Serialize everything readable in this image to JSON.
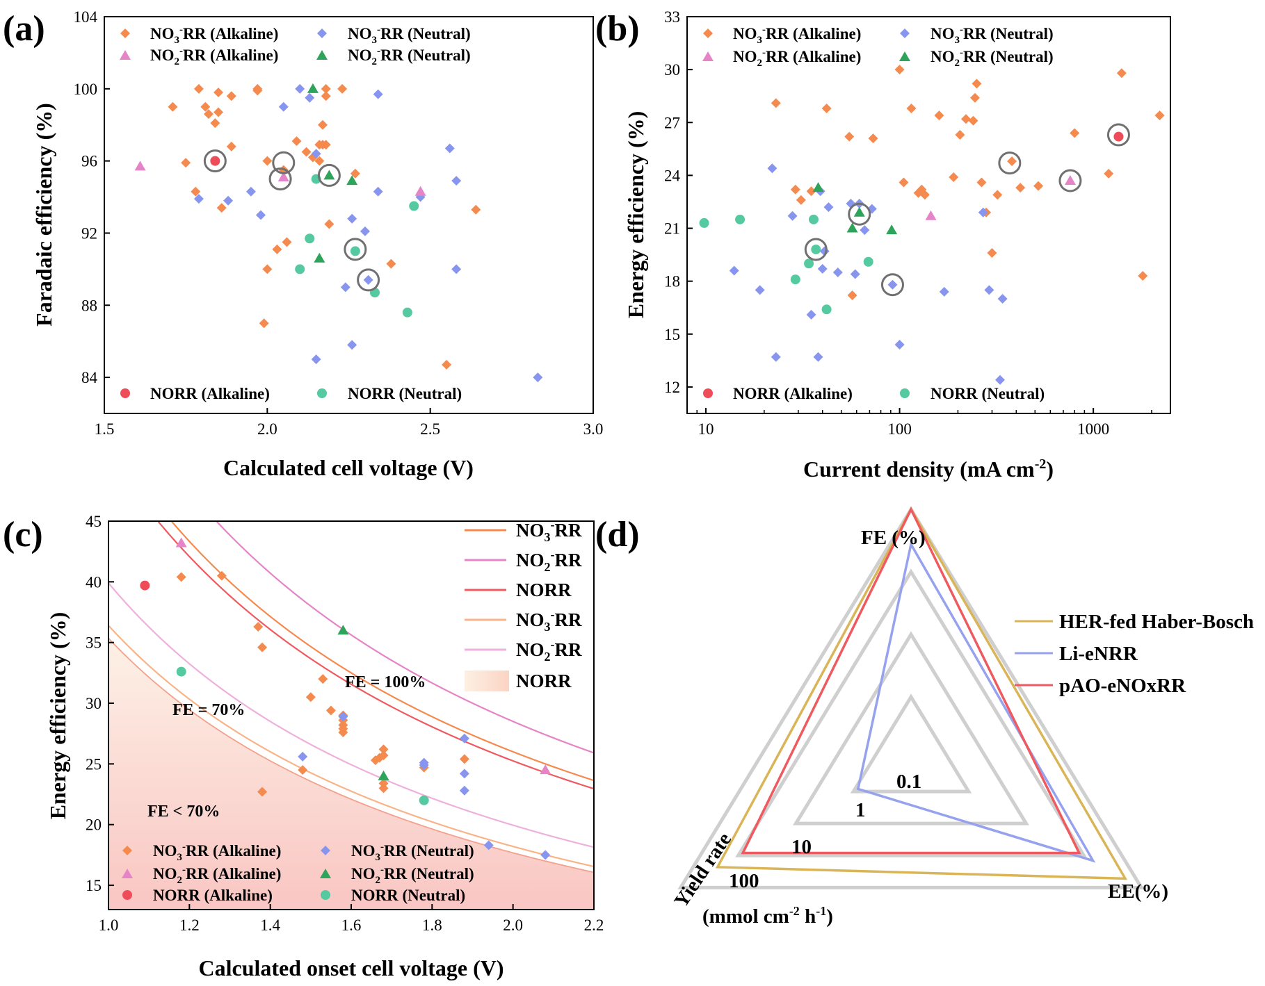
{
  "colors": {
    "no3_alk": "#f58a4e",
    "no3_neu": "#8795ee",
    "no2_alk": "#e684c8",
    "no2_neu": "#2ea35a",
    "norr_alk": "#ee4c58",
    "norr_neu": "#55c9a0",
    "her": "#d9b557",
    "li": "#97a2ee",
    "pao": "#ee5a5f",
    "grid_gray": "#cfcfcf",
    "circle_gray": "#707070"
  },
  "legend_labels": {
    "no3_alk": "NO3⁻RR (Alkaline)",
    "no3_neu": "NO3⁻RR (Neutral)",
    "no2_alk": "NO2⁻RR (Alkaline)",
    "no2_neu": "NO2⁻RR (Neutral)",
    "norr_alk": "NORR (Alkaline)",
    "norr_neu": "NORR (Neutral)"
  },
  "chart_data": [
    {
      "panel": "(a)",
      "type": "scatter",
      "xlabel": "Calculated cell voltage (V)",
      "ylabel": "Faradaic efficiency (%)",
      "xlim": [
        1.5,
        3.0
      ],
      "ylim": [
        82,
        104
      ],
      "xticks": [
        1.5,
        2.0,
        2.5,
        3.0
      ],
      "xtick_labels": [
        "1.5",
        "2.0",
        "2.5",
        "3.0"
      ],
      "yticks": [
        84,
        88,
        92,
        96,
        100,
        104
      ],
      "ytick_labels": [
        "84",
        "88",
        "92",
        "96",
        "100",
        "104"
      ],
      "series": [
        {
          "name": "NO3⁻RR (Alkaline)",
          "key": "no3_alk",
          "marker": "diamond",
          "x": [
            1.71,
            1.78,
            1.75,
            1.79,
            1.81,
            1.82,
            1.84,
            1.85,
            1.85,
            1.86,
            1.89,
            1.89,
            1.97,
            1.97,
            2.0,
            2.03,
            2.06,
            2.09,
            2.12,
            2.14,
            2.16,
            2.17,
            2.17,
            2.18,
            2.18,
            2.19,
            2.23,
            2.27,
            2.38,
            1.99,
            2.55,
            2.64,
            2.05,
            2.0,
            2.18,
            2.16
          ],
          "y": [
            99.0,
            94.3,
            95.9,
            100.0,
            99.0,
            98.6,
            98.1,
            99.8,
            98.7,
            93.4,
            99.6,
            96.8,
            99.9,
            100.0,
            90.0,
            91.1,
            91.5,
            97.1,
            96.5,
            96.2,
            96.9,
            98.0,
            96.9,
            99.6,
            100.0,
            92.5,
            100.0,
            95.3,
            90.3,
            87.0,
            84.7,
            93.3,
            95.5,
            96.0,
            96.9,
            96.0
          ]
        },
        {
          "name": "NO3⁻RR (Neutral)",
          "key": "no3_neu",
          "marker": "diamond",
          "x": [
            1.79,
            1.88,
            1.95,
            1.98,
            2.05,
            2.1,
            2.13,
            2.15,
            2.15,
            2.24,
            2.26,
            2.26,
            2.3,
            2.31,
            2.34,
            2.34,
            2.47,
            2.56,
            2.58,
            2.58,
            2.83
          ],
          "y": [
            93.9,
            93.8,
            94.3,
            93.0,
            99.0,
            100.0,
            99.5,
            96.4,
            85.0,
            89.0,
            92.8,
            85.8,
            92.1,
            89.4,
            99.7,
            94.3,
            94.0,
            96.7,
            94.9,
            90.0,
            84.0
          ]
        },
        {
          "name": "NO2⁻RR (Alkaline)",
          "key": "no2_alk",
          "marker": "triangle",
          "x": [
            1.61,
            2.05,
            2.47
          ],
          "y": [
            95.7,
            95.1,
            94.3
          ]
        },
        {
          "name": "NO2⁻RR (Neutral)",
          "key": "no2_neu",
          "marker": "triangle",
          "x": [
            2.14,
            2.16,
            2.19,
            2.26
          ],
          "y": [
            100.0,
            90.6,
            95.2,
            94.9
          ]
        },
        {
          "name": "NORR (Alkaline)",
          "key": "norr_alk",
          "marker": "circle",
          "x": [
            1.84
          ],
          "y": [
            96.0
          ]
        },
        {
          "name": "NORR (Neutral)",
          "key": "norr_neu",
          "marker": "circle",
          "x": [
            2.1,
            2.13,
            2.15,
            2.27,
            2.33,
            2.43,
            2.45
          ],
          "y": [
            90.0,
            91.7,
            95.0,
            91.0,
            88.7,
            87.6,
            93.5
          ]
        }
      ],
      "highlight_circles": {
        "x": [
          1.84,
          2.05,
          2.04,
          2.19,
          2.27,
          2.31
        ],
        "y": [
          96.0,
          95.9,
          95.0,
          95.2,
          91.1,
          89.4
        ]
      }
    },
    {
      "panel": "(b)",
      "type": "scatter",
      "xscale": "log",
      "xlabel": "Current density (mA cm⁻²)",
      "ylabel": "Energy efficiency (%)",
      "xlim": [
        8,
        2500
      ],
      "ylim": [
        10.5,
        33
      ],
      "xticks": [
        10,
        100,
        1000
      ],
      "xtick_labels": [
        "10",
        "100",
        "1000"
      ],
      "yticks": [
        12,
        15,
        18,
        21,
        24,
        27,
        30,
        33
      ],
      "ytick_labels": [
        "12",
        "15",
        "18",
        "21",
        "24",
        "27",
        "30",
        "33"
      ],
      "series": [
        {
          "name": "NO3⁻RR (Alkaline)",
          "key": "no3_alk",
          "marker": "diamond",
          "x": [
            23,
            29,
            31,
            35,
            42,
            55,
            57,
            73,
            100,
            105,
            115,
            125,
            130,
            135,
            160,
            190,
            205,
            220,
            240,
            245,
            250,
            265,
            280,
            300,
            320,
            380,
            420,
            520,
            800,
            1200,
            1400,
            1800,
            2200
          ],
          "y": [
            28.1,
            23.2,
            22.6,
            23.1,
            27.8,
            26.2,
            17.2,
            26.1,
            30.0,
            23.6,
            27.8,
            23.0,
            23.2,
            22.9,
            27.4,
            23.9,
            26.3,
            27.2,
            27.1,
            28.4,
            29.2,
            23.6,
            21.9,
            19.6,
            22.9,
            24.8,
            23.3,
            23.4,
            26.4,
            24.1,
            29.8,
            18.3,
            27.4
          ]
        },
        {
          "name": "NO3⁻RR (Neutral)",
          "key": "no3_neu",
          "marker": "diamond",
          "x": [
            14,
            19,
            22,
            23,
            28,
            35,
            38,
            39,
            40,
            41,
            43,
            48,
            56,
            59,
            62,
            66,
            72,
            92,
            100,
            170,
            270,
            290,
            330,
            340
          ],
          "y": [
            18.6,
            17.5,
            24.4,
            13.7,
            21.7,
            16.1,
            13.7,
            23.1,
            18.7,
            19.7,
            22.2,
            18.5,
            22.4,
            18.4,
            22.4,
            20.9,
            22.1,
            17.8,
            14.4,
            17.4,
            21.9,
            17.5,
            12.4,
            17.0
          ]
        },
        {
          "name": "NO2⁻RR (Alkaline)",
          "key": "no2_alk",
          "marker": "triangle",
          "x": [
            145,
            760
          ],
          "y": [
            21.7,
            23.7
          ]
        },
        {
          "name": "NO2⁻RR (Neutral)",
          "key": "no2_neu",
          "marker": "triangle",
          "x": [
            38,
            57,
            62,
            91
          ],
          "y": [
            23.3,
            21.0,
            21.9,
            20.9
          ]
        },
        {
          "name": "NORR (Alkaline)",
          "key": "norr_alk",
          "marker": "circle",
          "x": [
            1350
          ],
          "y": [
            26.2
          ]
        },
        {
          "name": "NORR (Neutral)",
          "key": "norr_neu",
          "marker": "circle",
          "x": [
            9.8,
            15,
            29,
            34,
            36,
            37,
            42,
            69
          ],
          "y": [
            21.3,
            21.5,
            18.1,
            19.0,
            21.5,
            19.8,
            16.4,
            19.1
          ]
        }
      ],
      "highlight_circles": {
        "x": [
          37,
          62,
          92,
          370,
          760,
          1350
        ],
        "y": [
          19.8,
          21.8,
          17.8,
          24.7,
          23.7,
          26.3
        ]
      }
    },
    {
      "panel": "(c)",
      "type": "scatter",
      "xlabel": "Calculated onset cell voltage (V)",
      "ylabel": "Energy efficiency (%)",
      "xlim": [
        1.0,
        2.2
      ],
      "ylim": [
        13,
        45
      ],
      "xticks": [
        1.0,
        1.2,
        1.4,
        1.6,
        1.8,
        2.0,
        2.2
      ],
      "xtick_labels": [
        "1.0",
        "1.2",
        "1.4",
        "1.6",
        "1.8",
        "2.0",
        "2.2"
      ],
      "yticks": [
        15,
        20,
        25,
        30,
        35,
        40,
        45
      ],
      "ytick_labels": [
        "15",
        "20",
        "25",
        "30",
        "35",
        "40",
        "45"
      ],
      "curves": [
        {
          "label": "NO3⁻RR",
          "key": "no3_alk",
          "fe": 1.0,
          "e0": 0.52,
          "scale": 100
        },
        {
          "label": "NO2⁻RR",
          "key": "no2_alk",
          "fe": 1.0,
          "e0": 0.57,
          "scale": 100
        },
        {
          "label": "NORR",
          "key": "norr_alk",
          "fe": 1.0,
          "e0": 0.505,
          "scale": 100
        },
        {
          "label": "NO3⁻RR",
          "key": "no3_alk",
          "fe": 0.7,
          "e0": 0.52,
          "scale": 100
        },
        {
          "label": "NO2⁻RR",
          "key": "no2_alk",
          "fe": 0.7,
          "e0": 0.57,
          "scale": 100
        },
        {
          "label": "NORR",
          "key": "norr_alk",
          "fe": 0.7,
          "e0": 0.505,
          "scale": 100
        }
      ],
      "annotations": [
        "FE = 100%",
        "FE = 70%",
        "FE < 70%"
      ],
      "series": [
        {
          "name": "NO3⁻RR (Alkaline)",
          "key": "no3_alk",
          "marker": "diamond",
          "x": [
            1.18,
            1.28,
            1.37,
            1.38,
            1.38,
            1.48,
            1.5,
            1.53,
            1.55,
            1.58,
            1.58,
            1.58,
            1.58,
            1.58,
            1.66,
            1.67,
            1.68,
            1.68,
            1.68,
            1.68,
            1.78,
            1.88
          ],
          "y": [
            40.4,
            40.5,
            36.3,
            34.6,
            22.7,
            24.5,
            30.5,
            32.0,
            29.4,
            29.0,
            28.6,
            28.2,
            27.9,
            27.6,
            25.3,
            25.5,
            26.2,
            25.7,
            23.4,
            23.0,
            24.7,
            25.4
          ]
        },
        {
          "name": "NO3⁻RR (Neutral)",
          "key": "no3_neu",
          "marker": "diamond",
          "x": [
            1.48,
            1.58,
            1.78,
            1.78,
            1.88,
            1.88,
            1.88,
            1.94,
            2.08
          ],
          "y": [
            25.6,
            28.9,
            25.1,
            24.9,
            27.1,
            24.2,
            22.8,
            18.3,
            17.5
          ]
        },
        {
          "name": "NO2⁻RR (Alkaline)",
          "key": "no2_alk",
          "marker": "triangle",
          "x": [
            1.18,
            2.08
          ],
          "y": [
            43.2,
            24.5
          ]
        },
        {
          "name": "NO2⁻RR (Neutral)",
          "key": "no2_neu",
          "marker": "triangle",
          "x": [
            1.58,
            1.68
          ],
          "y": [
            36.0,
            24.0
          ]
        },
        {
          "name": "NORR (Alkaline)",
          "key": "norr_alk",
          "marker": "circle",
          "x": [
            1.09
          ],
          "y": [
            39.7
          ]
        },
        {
          "name": "NORR (Neutral)",
          "key": "norr_neu",
          "marker": "circle",
          "x": [
            1.18,
            1.78
          ],
          "y": [
            32.6,
            22.0
          ]
        }
      ]
    },
    {
      "panel": "(d)",
      "type": "radar",
      "axes": [
        "FE (%)",
        "EE(%)",
        "Yield rate"
      ],
      "yield_unit": "(mmol cm⁻² h⁻¹)",
      "levels": [
        "0.1",
        "1",
        "10",
        "100"
      ],
      "series": [
        {
          "name": "HER-fed Haber-Bosch",
          "key": "her",
          "values": [
            1.0,
            0.93,
            0.84
          ]
        },
        {
          "name": "Li-eNRR",
          "key": "li",
          "values": [
            0.86,
            0.79,
            0.23
          ]
        },
        {
          "name": "pAO-eNOxRR",
          "key": "pao",
          "values": [
            1.0,
            0.73,
            0.73
          ]
        }
      ]
    }
  ]
}
